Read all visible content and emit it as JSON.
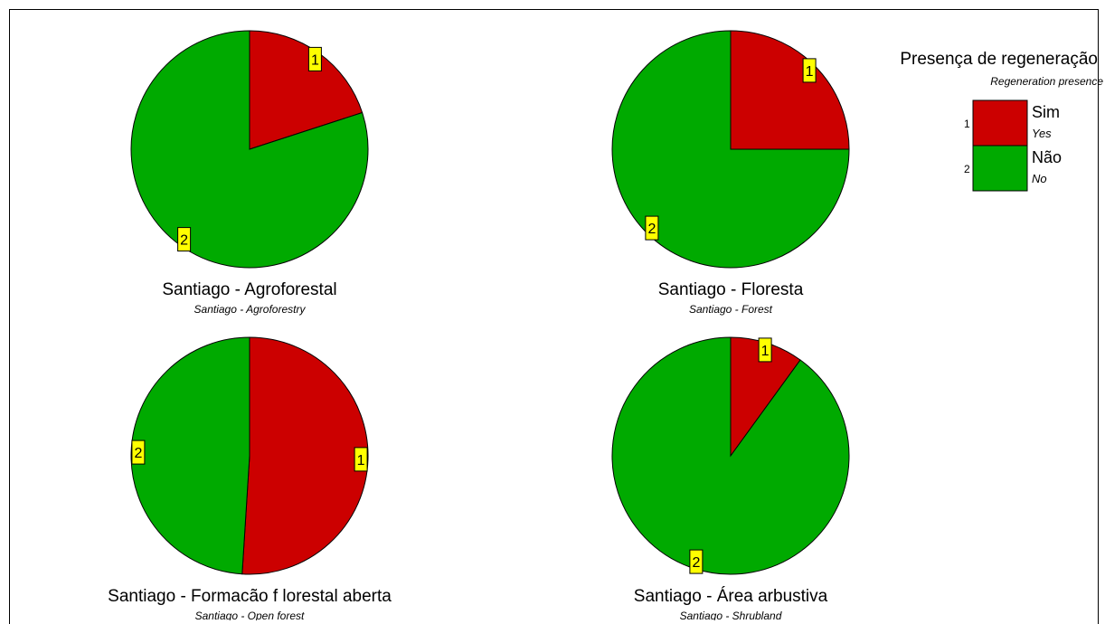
{
  "chart_data": {
    "type": "pie",
    "colors": {
      "1": "#cc0000",
      "2": "#00aa00"
    },
    "legend": {
      "title": "Presença de regeneração",
      "subtitle": "Regeneration presence",
      "placement": "top-right",
      "items": [
        {
          "code": "1",
          "label": "Sim",
          "translation": "Yes",
          "color": "#cc0000"
        },
        {
          "code": "2",
          "label": "Não",
          "translation": "No",
          "color": "#00aa00"
        }
      ]
    },
    "charts": [
      {
        "title": "Santiago - Agroforestal",
        "subtitle": "Santiago - Agroforestry",
        "slices": [
          {
            "category": "1",
            "label": "1",
            "value": 20
          },
          {
            "category": "2",
            "label": "2",
            "value": 80
          }
        ]
      },
      {
        "title": "Santiago - Floresta",
        "subtitle": "Santiago - Forest",
        "slices": [
          {
            "category": "1",
            "label": "1",
            "value": 25
          },
          {
            "category": "2",
            "label": "2",
            "value": 75
          }
        ]
      },
      {
        "title": "Santiago - Formacão f lorestal aberta",
        "subtitle": "Santiago - Open forest",
        "slices": [
          {
            "category": "1",
            "label": "1",
            "value": 51
          },
          {
            "category": "2",
            "label": "2",
            "value": 49
          }
        ]
      },
      {
        "title": "Santiago - Área arbustiva",
        "subtitle": "Santiago - Shrubland",
        "slices": [
          {
            "category": "1",
            "label": "1",
            "value": 10
          },
          {
            "category": "2",
            "label": "2",
            "value": 90
          }
        ]
      }
    ]
  }
}
